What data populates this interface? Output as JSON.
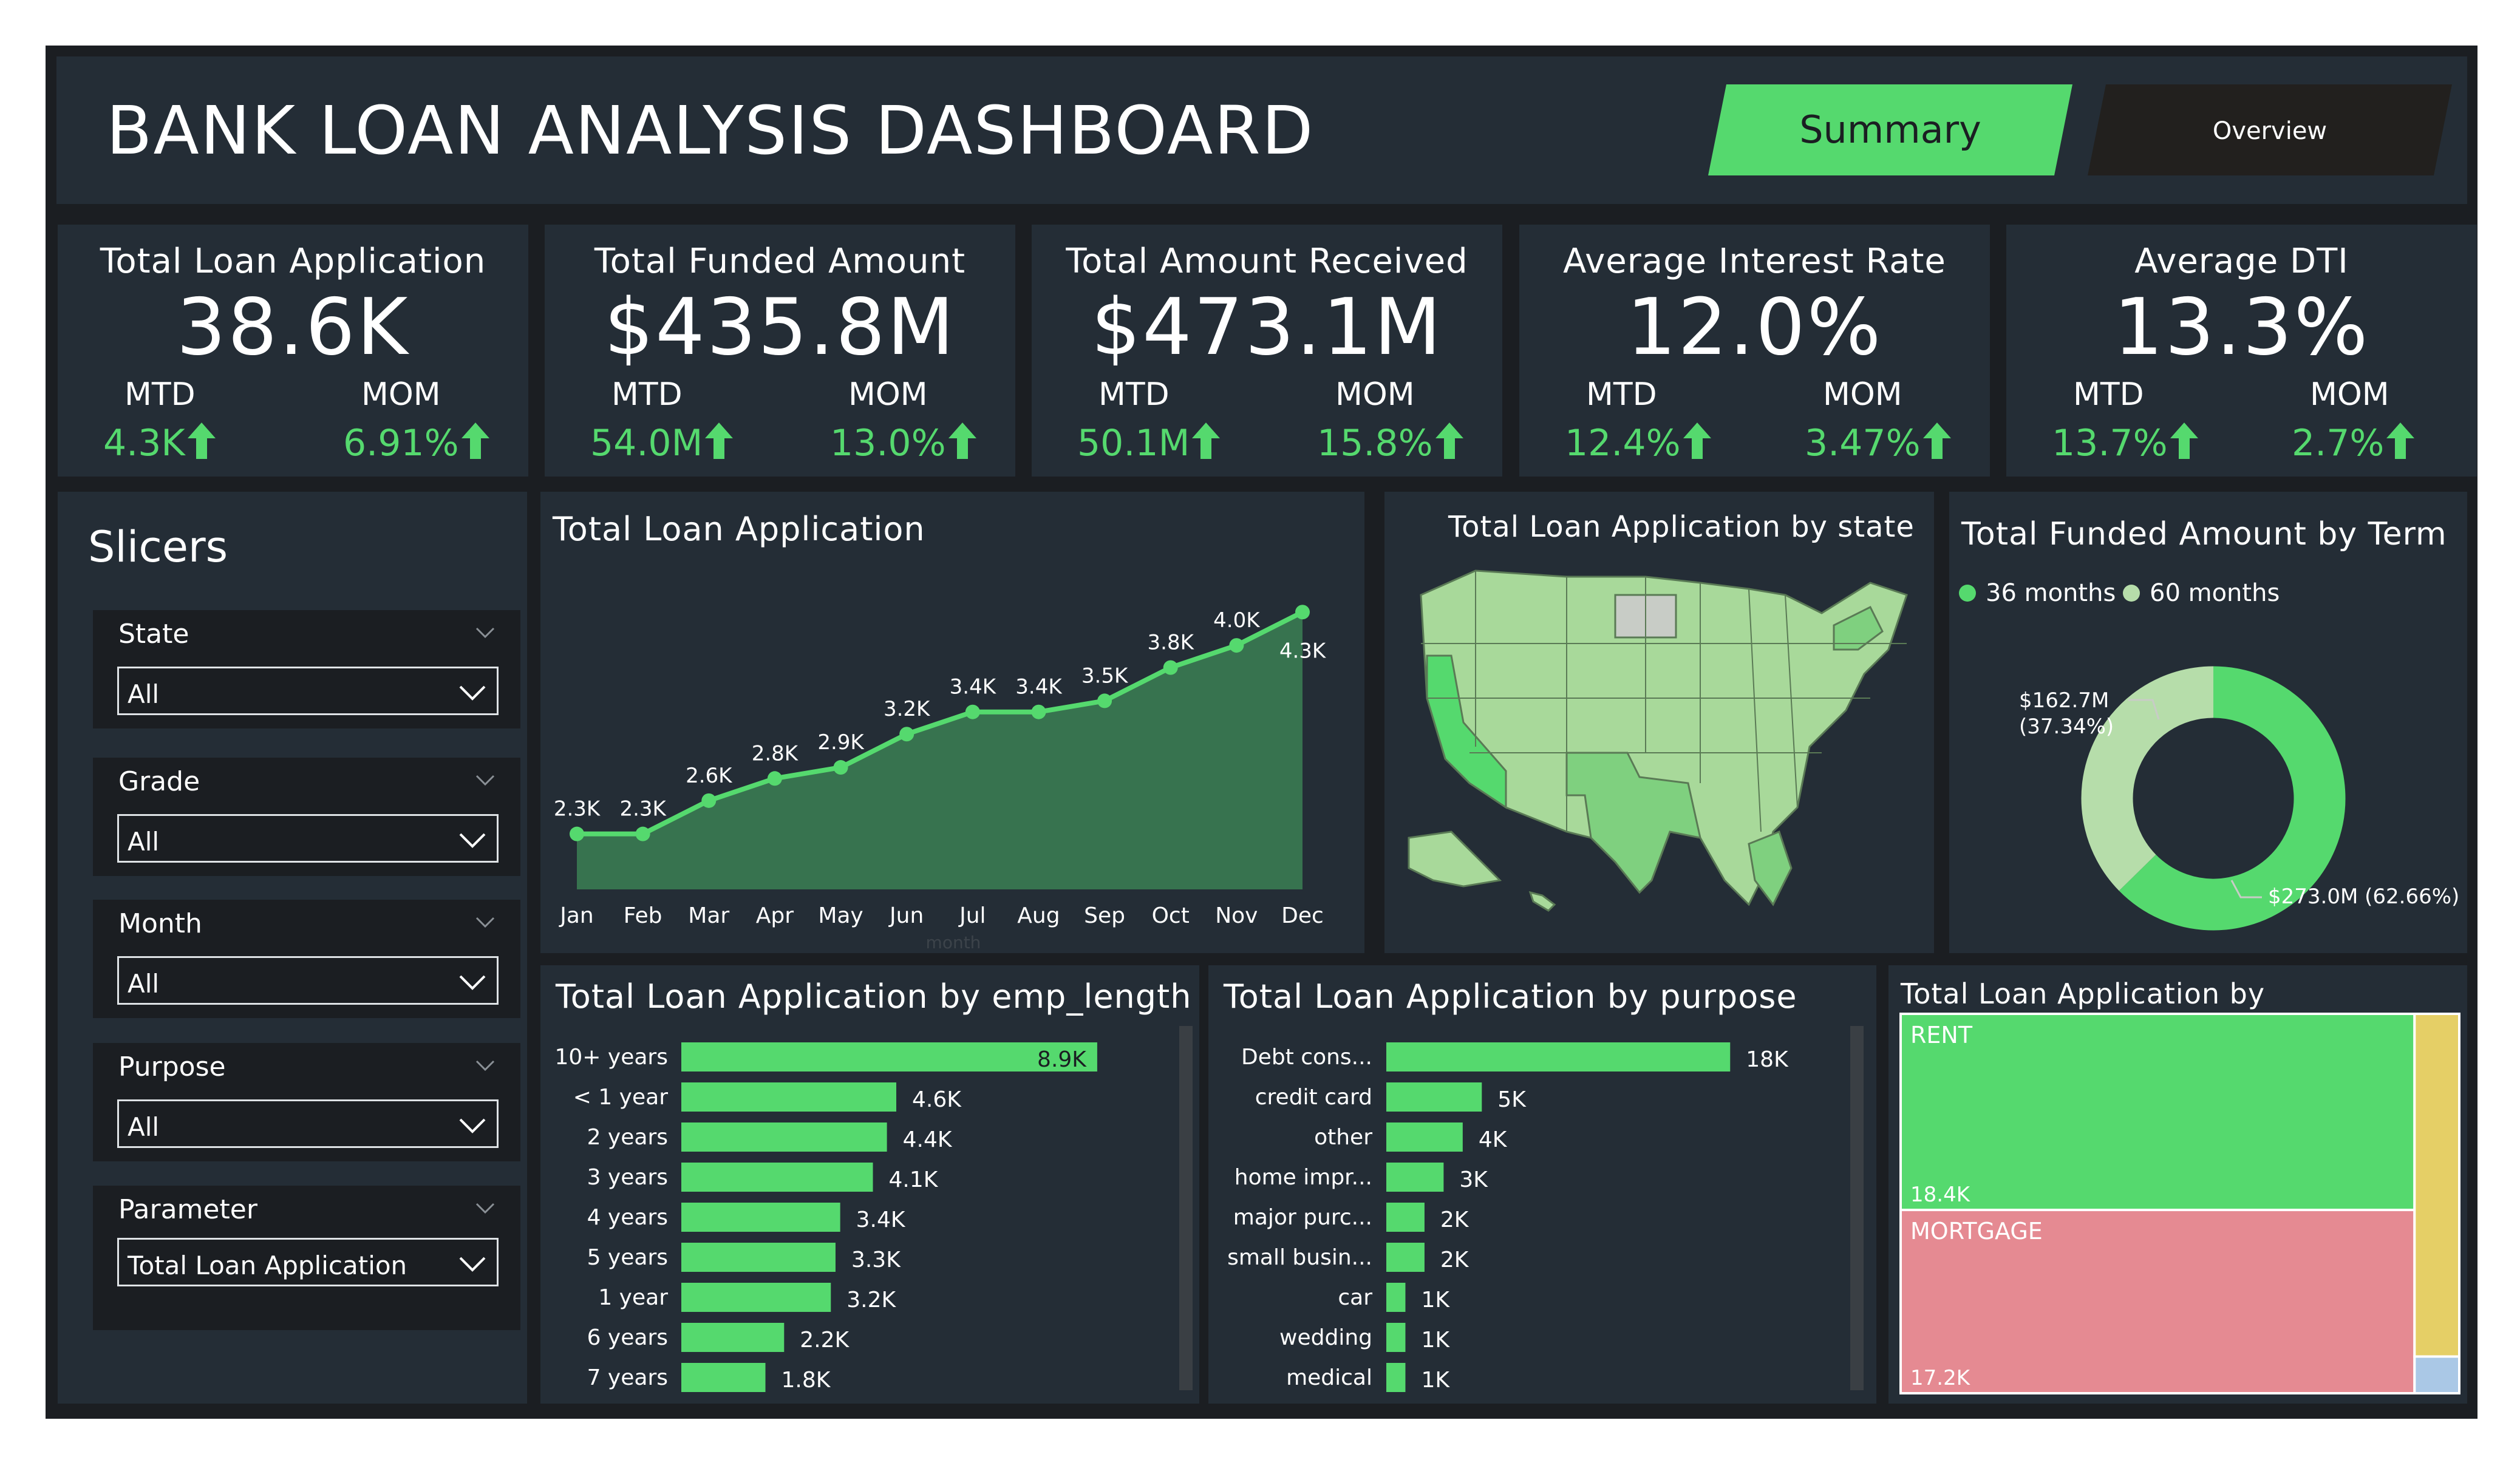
{
  "header": {
    "title": "BANK LOAN ANALYSIS DASHBOARD",
    "tabs": [
      {
        "label": "Summary",
        "active": true
      },
      {
        "label": "Overview",
        "active": false
      }
    ]
  },
  "kpis": [
    {
      "title": "Total Loan Application",
      "value": "38.6K",
      "mtd_label": "MTD",
      "mtd": "4.3K",
      "mom_label": "MOM",
      "mom": "6.91%"
    },
    {
      "title": "Total Funded Amount",
      "value": "$435.8M",
      "mtd_label": "MTD",
      "mtd": "54.0M",
      "mom_label": "MOM",
      "mom": "13.0%"
    },
    {
      "title": "Total Amount Received",
      "value": "$473.1M",
      "mtd_label": "MTD",
      "mtd": "50.1M",
      "mom_label": "MOM",
      "mom": "15.8%"
    },
    {
      "title": "Average Interest Rate",
      "value": "12.0%",
      "mtd_label": "MTD",
      "mtd": "12.4%",
      "mom_label": "MOM",
      "mom": "3.47%"
    },
    {
      "title": "Average DTI",
      "value": "13.3%",
      "mtd_label": "MTD",
      "mtd": "13.7%",
      "mom_label": "MOM",
      "mom": "2.7%"
    }
  ],
  "slicers": {
    "title": "Slicers",
    "items": [
      {
        "label": "State",
        "value": "All"
      },
      {
        "label": "Grade",
        "value": "All"
      },
      {
        "label": "Month",
        "value": "All"
      },
      {
        "label": "Purpose",
        "value": "All"
      },
      {
        "label": "Parameter",
        "value": "Total Loan Application"
      }
    ]
  },
  "colors": {
    "accent": "#55d96e",
    "panel": "#242d36",
    "frame": "#1b1e22",
    "area_fill": "#37734f",
    "pale_green": "#b6ddaa",
    "rent": "#55d96e",
    "mortgage": "#e58a92",
    "own": "#e5cf66",
    "other": "#aac8e6"
  },
  "chart_data": [
    {
      "type": "area",
      "title": "Total Loan Application",
      "xlabel": "month",
      "categories": [
        "Jan",
        "Feb",
        "Mar",
        "Apr",
        "May",
        "Jun",
        "Jul",
        "Aug",
        "Sep",
        "Oct",
        "Nov",
        "Dec"
      ],
      "values": [
        2.3,
        2.3,
        2.6,
        2.8,
        2.9,
        3.2,
        3.4,
        3.4,
        3.5,
        3.8,
        4.0,
        4.3
      ],
      "labels": [
        "2.3K",
        "2.3K",
        "2.6K",
        "2.8K",
        "2.9K",
        "3.2K",
        "3.4K",
        "3.4K",
        "3.5K",
        "3.8K",
        "4.0K",
        "4.3K"
      ],
      "ylim": [
        1.8,
        4.4
      ]
    },
    {
      "type": "map",
      "title": "Total Loan Application by state"
    },
    {
      "type": "pie",
      "title": "Total Funded Amount by Term",
      "legend": "top-left",
      "slices": [
        {
          "name": "36 months",
          "value": 273.0,
          "label": "$273.0M (62.66%)"
        },
        {
          "name": "60 months",
          "value": 162.7,
          "label_line1": "$162.7M",
          "label_line2": "(37.34%)"
        }
      ]
    },
    {
      "type": "bar",
      "title": "Total Loan Application by emp_length",
      "categories": [
        "10+ years",
        "< 1 year",
        "2 years",
        "3 years",
        "4 years",
        "5 years",
        "1 year",
        "6 years",
        "7 years"
      ],
      "values": [
        8.9,
        4.6,
        4.4,
        4.1,
        3.4,
        3.3,
        3.2,
        2.2,
        1.8
      ],
      "labels": [
        "8.9K",
        "4.6K",
        "4.4K",
        "4.1K",
        "3.4K",
        "3.3K",
        "3.2K",
        "2.2K",
        "1.8K"
      ],
      "xlim": [
        0,
        9.2
      ]
    },
    {
      "type": "bar",
      "title": "Total Loan Application by purpose",
      "categories": [
        "Debt cons...",
        "credit card",
        "other",
        "home impr...",
        "major purc...",
        "small busin...",
        "car",
        "wedding",
        "medical"
      ],
      "values": [
        18,
        5,
        4,
        3,
        2,
        2,
        1,
        1,
        1
      ],
      "labels": [
        "18K",
        "5K",
        "4K",
        "3K",
        "2K",
        "2K",
        "1K",
        "1K",
        "1K"
      ],
      "xlim": [
        0,
        18.5
      ]
    },
    {
      "type": "treemap",
      "title": "Total Loan Application by home_ownership",
      "items": [
        {
          "name": "RENT",
          "value": 18.4,
          "label": "18.4K"
        },
        {
          "name": "MORTGAGE",
          "value": 17.2,
          "label": "17.2K"
        },
        {
          "name": "",
          "value": 2.8
        },
        {
          "name": "",
          "value": 0.3
        }
      ]
    }
  ]
}
